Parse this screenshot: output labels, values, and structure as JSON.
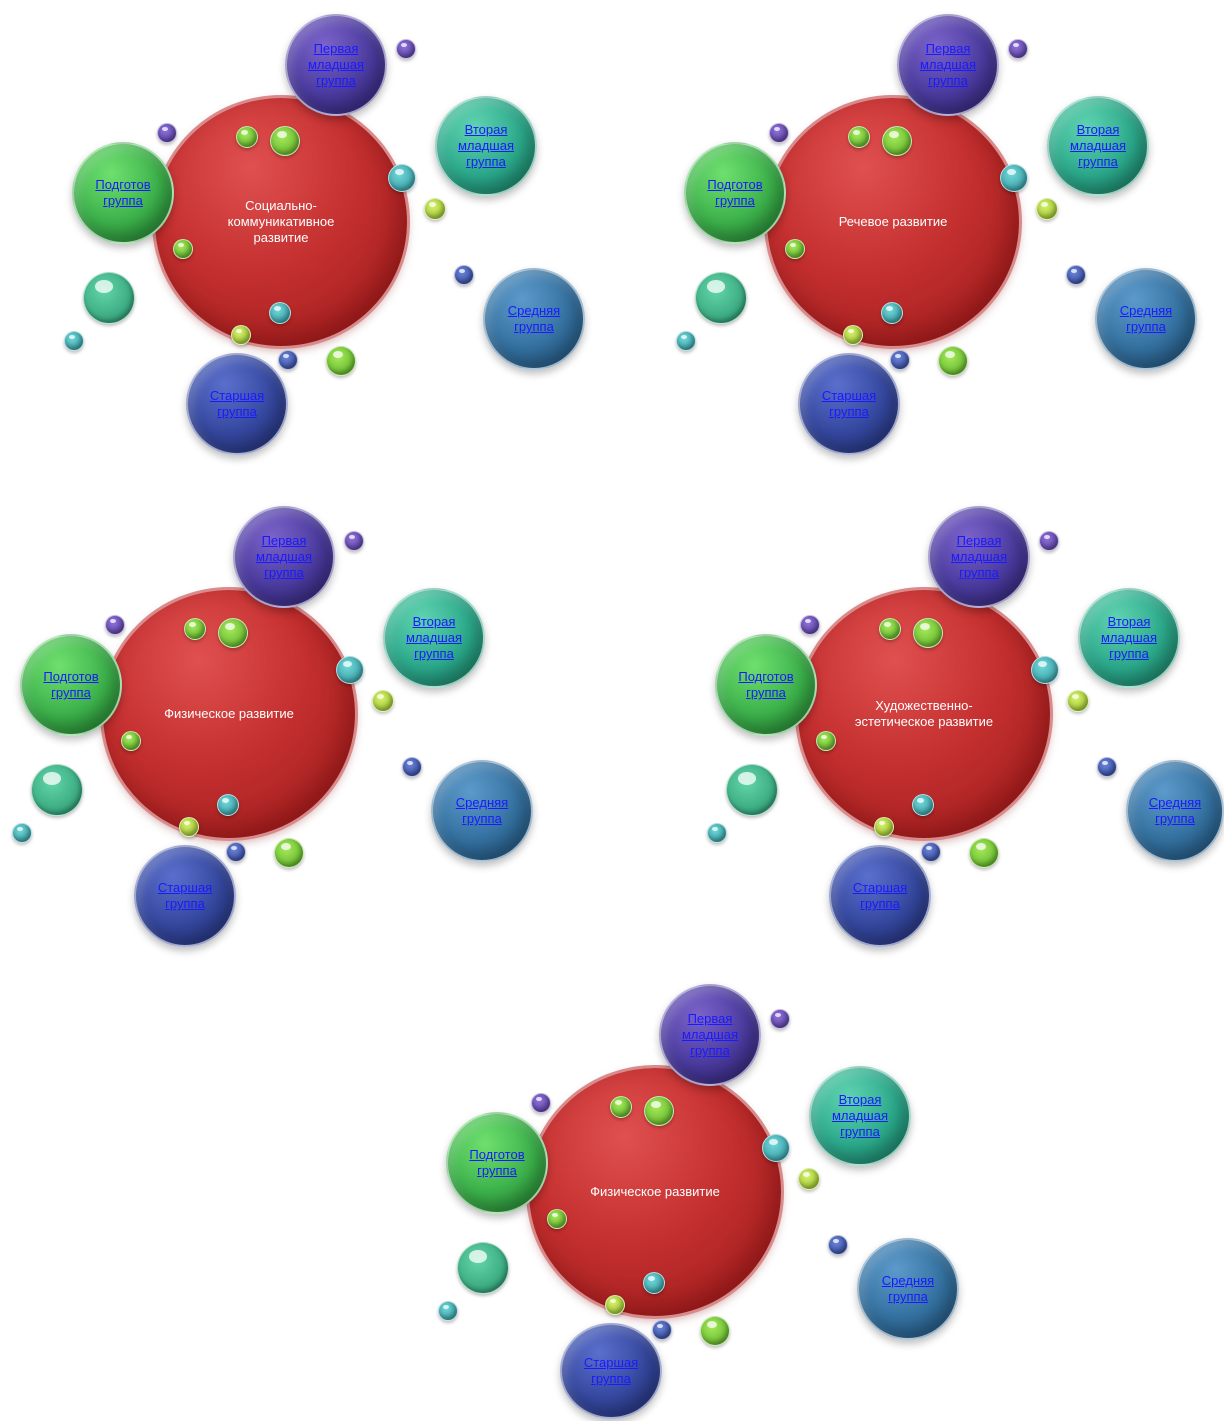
{
  "diagrams": [
    {
      "center_label": "Социально-\nкоммуникативное\nразвитие",
      "groups": {
        "first_junior": "Первая\nмладшая\nгруппа",
        "second_junior": "Вторая\nмладшая\nгруппа",
        "middle": "Средняя\nгруппа",
        "senior": "Старшая\nгруппа",
        "preparatory": "Подготов\nгруппа"
      }
    },
    {
      "center_label": "Речевое  развитие",
      "groups": {
        "first_junior": "Первая\nмладшая\nгруппа",
        "second_junior": "Вторая\nмладшая\nгруппа",
        "middle": "Средняя\nгруппа",
        "senior": "Старшая\nгруппа",
        "preparatory": "Подготов\nгруппа"
      }
    },
    {
      "center_label": "Физическое развитие",
      "groups": {
        "first_junior": "Первая\nмладшая\nгруппа",
        "second_junior": "Вторая\nмладшая\nгруппа",
        "middle": "Средняя\nгруппа",
        "senior": "Старшая\nгруппа",
        "preparatory": "Подготов\nгруппа"
      }
    },
    {
      "center_label": "Художественно-\nэстетическое развитие",
      "groups": {
        "first_junior": "Первая\nмладшая\nгруппа",
        "second_junior": "Вторая\nмладшая\nгруппа",
        "middle": "Средняя\nгруппа",
        "senior": "Старшая\nгруппа",
        "preparatory": "Подготов\nгруппа"
      }
    },
    {
      "center_label": "Физическое развитие",
      "groups": {
        "first_junior": "Первая\nмладшая\nгруппа",
        "second_junior": "Вторая\nмладшая\nгруппа",
        "middle": "Средняя\nгруппа",
        "senior": "Старшая\nгруппа",
        "preparatory": "Подготов\nгруппа"
      }
    }
  ],
  "colors": {
    "center": "#c42f2f",
    "link": "#1a1aff",
    "first_junior": "#4a3a9e",
    "second_junior": "#2aa88a",
    "middle": "#33709f",
    "senior": "#34479e",
    "preparatory": "#3bb04a"
  }
}
